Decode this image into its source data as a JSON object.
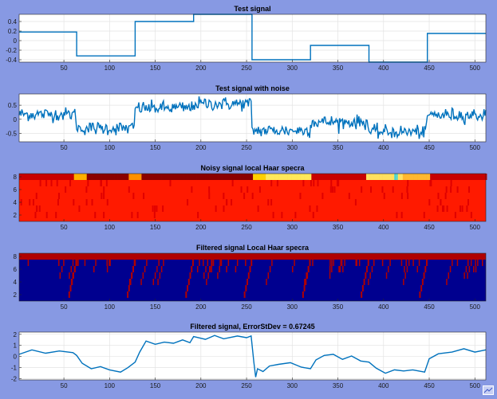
{
  "figure": {
    "background": "#8799e3",
    "line_color": "#0072bd"
  },
  "chart_data": [
    {
      "type": "line",
      "title": "Test signal",
      "xlim": [
        1,
        512
      ],
      "ylim": [
        -0.45,
        0.55
      ],
      "xticks": [
        50,
        100,
        150,
        200,
        250,
        300,
        350,
        400,
        450,
        500
      ],
      "yticks": [
        0.4,
        0.2,
        0,
        -0.2,
        -0.4
      ],
      "ytick_labels": [
        "0.4",
        "0.2",
        "0",
        "-0.2",
        "-0.4"
      ],
      "grid": true,
      "segments": [
        {
          "x0": 1,
          "x1": 64,
          "y": 0.18
        },
        {
          "x0": 64,
          "x1": 128,
          "y": -0.32
        },
        {
          "x0": 128,
          "x1": 192,
          "y": 0.4
        },
        {
          "x0": 192,
          "x1": 256,
          "y": 0.55
        },
        {
          "x0": 256,
          "x1": 320,
          "y": -0.4
        },
        {
          "x0": 320,
          "x1": 384,
          "y": -0.1
        },
        {
          "x0": 384,
          "x1": 448,
          "y": -0.45
        },
        {
          "x0": 448,
          "x1": 512,
          "y": 0.15
        }
      ]
    },
    {
      "type": "line",
      "title": "Test signal with noise",
      "xlim": [
        1,
        512
      ],
      "ylim": [
        -0.8,
        0.9
      ],
      "xticks": [
        50,
        100,
        150,
        200,
        250,
        300,
        350,
        400,
        450,
        500
      ],
      "yticks": [
        0.5,
        0,
        -0.5
      ],
      "ytick_labels": [
        "0.5",
        "0",
        "-0.5"
      ],
      "grid": true,
      "noise_std": 0.12
    },
    {
      "type": "heatmap",
      "title": "Noisy signal local  Haar specra",
      "xlim": [
        1,
        512
      ],
      "ylim": [
        1,
        8.5
      ],
      "xticks": [
        50,
        100,
        150,
        200,
        250,
        300,
        350,
        400,
        450,
        500
      ],
      "yticks": [
        2,
        4,
        6,
        8
      ],
      "ytick_labels": [
        "2",
        "4",
        "6",
        "8"
      ],
      "colormap": "jet",
      "base_color": "#ff1a00"
    },
    {
      "type": "heatmap",
      "title": "Filtered signal Local Haar specra",
      "xlim": [
        1,
        512
      ],
      "ylim": [
        1,
        8.5
      ],
      "xticks": [
        50,
        100,
        150,
        200,
        250,
        300,
        350,
        400,
        450,
        500
      ],
      "yticks": [
        2,
        4,
        6,
        8
      ],
      "ytick_labels": [
        "2",
        "4",
        "6",
        "8"
      ],
      "colormap": "jet",
      "base_color": "#00008f",
      "active_color": "#b00000"
    },
    {
      "type": "line",
      "title": "Filtered signal, ErrorStDev = 0.67245",
      "xlim": [
        1,
        512
      ],
      "ylim": [
        -2.1,
        2.2
      ],
      "xticks": [
        50,
        100,
        150,
        200,
        250,
        300,
        350,
        400,
        450,
        500
      ],
      "yticks": [
        2,
        1,
        0,
        -1,
        -2
      ],
      "ytick_labels": [
        "2",
        "1",
        "0",
        "-1",
        "-2"
      ],
      "grid": true,
      "points": [
        [
          1,
          0.2
        ],
        [
          15,
          0.6
        ],
        [
          30,
          0.3
        ],
        [
          45,
          0.5
        ],
        [
          60,
          0.35
        ],
        [
          64,
          0.1
        ],
        [
          70,
          -0.6
        ],
        [
          80,
          -1.1
        ],
        [
          90,
          -0.9
        ],
        [
          100,
          -1.2
        ],
        [
          112,
          -1.4
        ],
        [
          120,
          -1.0
        ],
        [
          128,
          -0.5
        ],
        [
          133,
          0.4
        ],
        [
          140,
          1.4
        ],
        [
          150,
          1.1
        ],
        [
          160,
          1.3
        ],
        [
          170,
          1.2
        ],
        [
          180,
          1.5
        ],
        [
          188,
          1.25
        ],
        [
          192,
          1.8
        ],
        [
          205,
          1.55
        ],
        [
          215,
          1.9
        ],
        [
          225,
          1.6
        ],
        [
          240,
          1.85
        ],
        [
          250,
          1.7
        ],
        [
          255,
          1.85
        ],
        [
          258,
          -0.5
        ],
        [
          260,
          -1.85
        ],
        [
          262,
          -1.1
        ],
        [
          268,
          -1.35
        ],
        [
          275,
          -0.85
        ],
        [
          285,
          -0.7
        ],
        [
          298,
          -0.55
        ],
        [
          310,
          -0.95
        ],
        [
          320,
          -1.1
        ],
        [
          326,
          -0.3
        ],
        [
          335,
          0.1
        ],
        [
          345,
          0.2
        ],
        [
          355,
          -0.25
        ],
        [
          365,
          0.05
        ],
        [
          375,
          -0.4
        ],
        [
          384,
          -0.5
        ],
        [
          392,
          -1.05
        ],
        [
          402,
          -1.5
        ],
        [
          412,
          -1.2
        ],
        [
          422,
          -1.3
        ],
        [
          432,
          -1.2
        ],
        [
          445,
          -1.4
        ],
        [
          450,
          -0.2
        ],
        [
          460,
          0.25
        ],
        [
          475,
          0.4
        ],
        [
          488,
          0.7
        ],
        [
          500,
          0.4
        ],
        [
          512,
          0.6
        ]
      ]
    }
  ]
}
